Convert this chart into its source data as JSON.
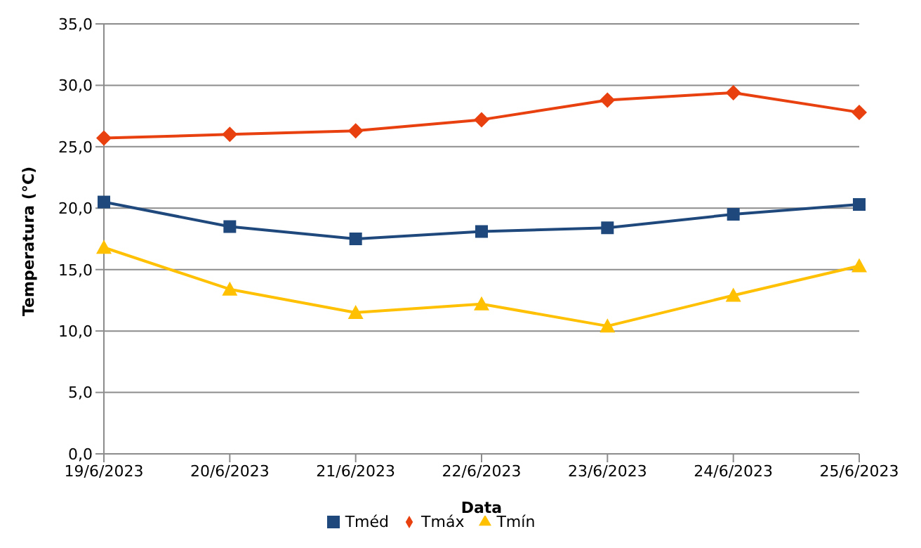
{
  "chart_data": {
    "type": "line",
    "xlabel": "Data",
    "ylabel": "Temperatura (°C)",
    "categories": [
      "19/6/2023",
      "20/6/2023",
      "21/6/2023",
      "22/6/2023",
      "23/6/2023",
      "24/6/2023",
      "25/6/2023"
    ],
    "series": [
      {
        "name": "Tméd",
        "color": "#1f497d",
        "marker": "square",
        "values": [
          20.5,
          18.5,
          17.5,
          18.1,
          18.4,
          19.5,
          20.3
        ]
      },
      {
        "name": "Tmáx",
        "color": "#e8400f",
        "marker": "diamond",
        "values": [
          25.7,
          26.0,
          26.3,
          27.2,
          28.8,
          29.4,
          27.8
        ]
      },
      {
        "name": "Tmín",
        "color": "#ffc000",
        "marker": "triangle",
        "values": [
          16.8,
          13.4,
          11.5,
          12.2,
          10.4,
          12.9,
          15.3
        ]
      }
    ],
    "ylim": [
      0,
      35
    ],
    "yticks": [
      {
        "value": 0,
        "label": "0,0"
      },
      {
        "value": 5,
        "label": "5,0"
      },
      {
        "value": 10,
        "label": "10,0"
      },
      {
        "value": 15,
        "label": "15,0"
      },
      {
        "value": 20,
        "label": "20,0"
      },
      {
        "value": 25,
        "label": "25,0"
      },
      {
        "value": 30,
        "label": "30,0"
      },
      {
        "value": 35,
        "label": "35,0"
      }
    ],
    "grid": "y",
    "legend": "bottom",
    "line_style": "solid"
  }
}
